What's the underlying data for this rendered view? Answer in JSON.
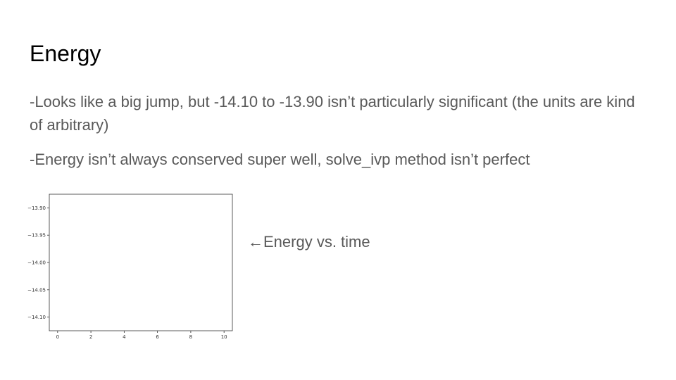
{
  "slide": {
    "title": "Energy",
    "bullets": [
      "-Looks like a big jump, but -14.10 to -13.90 isn’t particularly significant (the units are kind of arbitrary)",
      "-Energy isn’t always conserved super well, solve_ivp method isn’t perfect"
    ],
    "annotation": "←Energy vs. time",
    "colors": {
      "title": "#000000",
      "body_text": "#595959",
      "axes": "#333333"
    }
  },
  "chart_data": {
    "type": "line",
    "title": "",
    "xlabel": "",
    "ylabel": "",
    "xlim": [
      -0.5,
      10.5
    ],
    "ylim": [
      -14.125,
      -13.875
    ],
    "x_ticks": [
      0,
      2,
      4,
      6,
      8,
      10
    ],
    "x_tick_labels": [
      "0",
      "2",
      "4",
      "6",
      "8",
      "10"
    ],
    "y_ticks": [
      -13.9,
      -13.95,
      -14.0,
      -14.05,
      -14.1
    ],
    "y_tick_labels": [
      "−13.90",
      "−13.95",
      "−14.00",
      "−14.05",
      "−14.10"
    ],
    "grid": false,
    "series": []
  }
}
